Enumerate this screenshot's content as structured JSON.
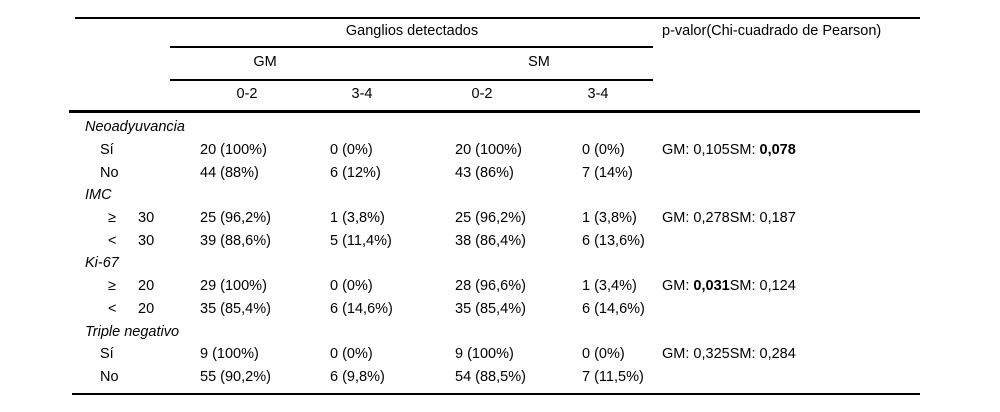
{
  "colors": {
    "background": "#ffffff",
    "text": "#000000",
    "rule": "#000000"
  },
  "table": {
    "header": {
      "group_title": "Ganglios detectados",
      "pvalue_title": "p-valor(Chi-cuadrado de Pearson)",
      "subgroup_left": "GM",
      "subgroup_right": "SM",
      "columns": [
        "0-2",
        "3-4",
        "0-2",
        "3-4"
      ]
    },
    "rows": [
      {
        "type": "section",
        "label": "Neoadyuvancia"
      },
      {
        "type": "data",
        "label": "Sí",
        "values": [
          "20 (100%)",
          "0 (0%)",
          "20 (100%)",
          "0 (0%)"
        ],
        "pvalue": [
          {
            "text": "GM: 0,105",
            "bold": false
          },
          {
            "text": "SM: ",
            "bold": false
          },
          {
            "text": "0,078",
            "bold": true
          }
        ]
      },
      {
        "type": "data",
        "label": "No",
        "values": [
          "44 (88%)",
          "6 (12%)",
          "43 (86%)",
          "7 (14%)"
        ],
        "pvalue": []
      },
      {
        "type": "section",
        "label": "IMC"
      },
      {
        "type": "data",
        "op": "≥",
        "threshold": "30",
        "values": [
          "25 (96,2%)",
          "1 (3,8%)",
          "25 (96,2%)",
          "1 (3,8%)"
        ],
        "pvalue": [
          {
            "text": "GM: 0,278",
            "bold": false
          },
          {
            "text": "SM: 0,187",
            "bold": false
          }
        ]
      },
      {
        "type": "data",
        "op": "<",
        "threshold": "30",
        "values": [
          "39 (88,6%)",
          "5 (11,4%)",
          "38 (86,4%)",
          "6 (13,6%)"
        ],
        "pvalue": []
      },
      {
        "type": "section",
        "label": "Ki-67"
      },
      {
        "type": "data",
        "op": "≥",
        "threshold": "20",
        "values": [
          "29 (100%)",
          "0 (0%)",
          "28 (96,6%)",
          "1 (3,4%)"
        ],
        "pvalue": [
          {
            "text": "GM: ",
            "bold": false
          },
          {
            "text": "0,031",
            "bold": true
          },
          {
            "text": "SM: 0,124",
            "bold": false
          }
        ]
      },
      {
        "type": "data",
        "op": "<",
        "threshold": "20",
        "values": [
          "35 (85,4%)",
          "6 (14,6%)",
          "35 (85,4%)",
          "6 (14,6%)"
        ],
        "pvalue": []
      },
      {
        "type": "section",
        "label": "Triple negativo"
      },
      {
        "type": "data",
        "label": "Sí",
        "values": [
          "9 (100%)",
          "0 (0%)",
          "9 (100%)",
          "0 (0%)"
        ],
        "pvalue": [
          {
            "text": "GM: 0,325",
            "bold": false
          },
          {
            "text": "SM: 0,284",
            "bold": false
          }
        ]
      },
      {
        "type": "data",
        "label": "No",
        "values": [
          "55 (90,2%)",
          "6 (9,8%)",
          "54 (88,5%)",
          "7 (11,5%)"
        ],
        "pvalue": []
      }
    ]
  }
}
